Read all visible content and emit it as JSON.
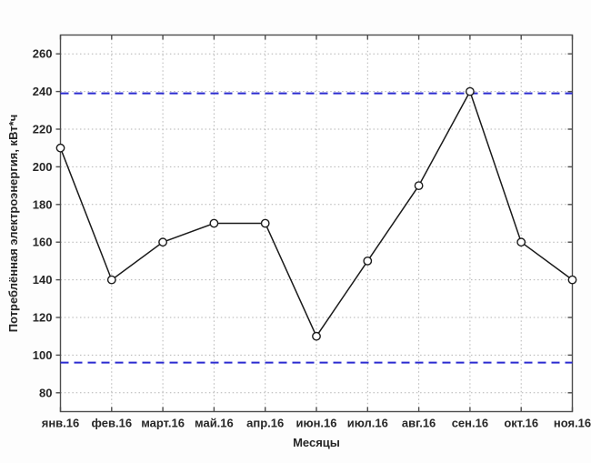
{
  "figure": {
    "background": "#fdfdfd"
  },
  "chart_data": {
    "type": "line",
    "title": "",
    "xlabel": "Месяцы",
    "ylabel": "Потреблённая электроэнергия, кВт*ч",
    "categories": [
      "янв.16",
      "фев.16",
      "март.16",
      "май.16",
      "апр.16",
      "июн.16",
      "июл.16",
      "авг.16",
      "сен.16",
      "окт.16",
      "ноя.16"
    ],
    "values": [
      210,
      140,
      160,
      170,
      170,
      110,
      150,
      190,
      240,
      160,
      140
    ],
    "ylim": [
      70,
      270
    ],
    "yticks": [
      80,
      100,
      120,
      140,
      160,
      180,
      200,
      220,
      240,
      260
    ],
    "grid": true,
    "legend": "none",
    "limit_lines": [
      {
        "name": "upper-control-limit",
        "value": 239,
        "color": "#2a2ad0",
        "style": "dashed"
      },
      {
        "name": "lower-control-limit",
        "value": 96,
        "color": "#2a2ad0",
        "style": "dashed"
      }
    ],
    "line_color": "#1a1a1a",
    "marker": {
      "shape": "open-circle",
      "stroke": "#1a1a1a",
      "fill": "#ffffff"
    },
    "colors": {
      "axis": "#4d4d4d",
      "grid": "#b3b3b3",
      "text": "#262626",
      "plot_background": "#ffffff"
    }
  }
}
